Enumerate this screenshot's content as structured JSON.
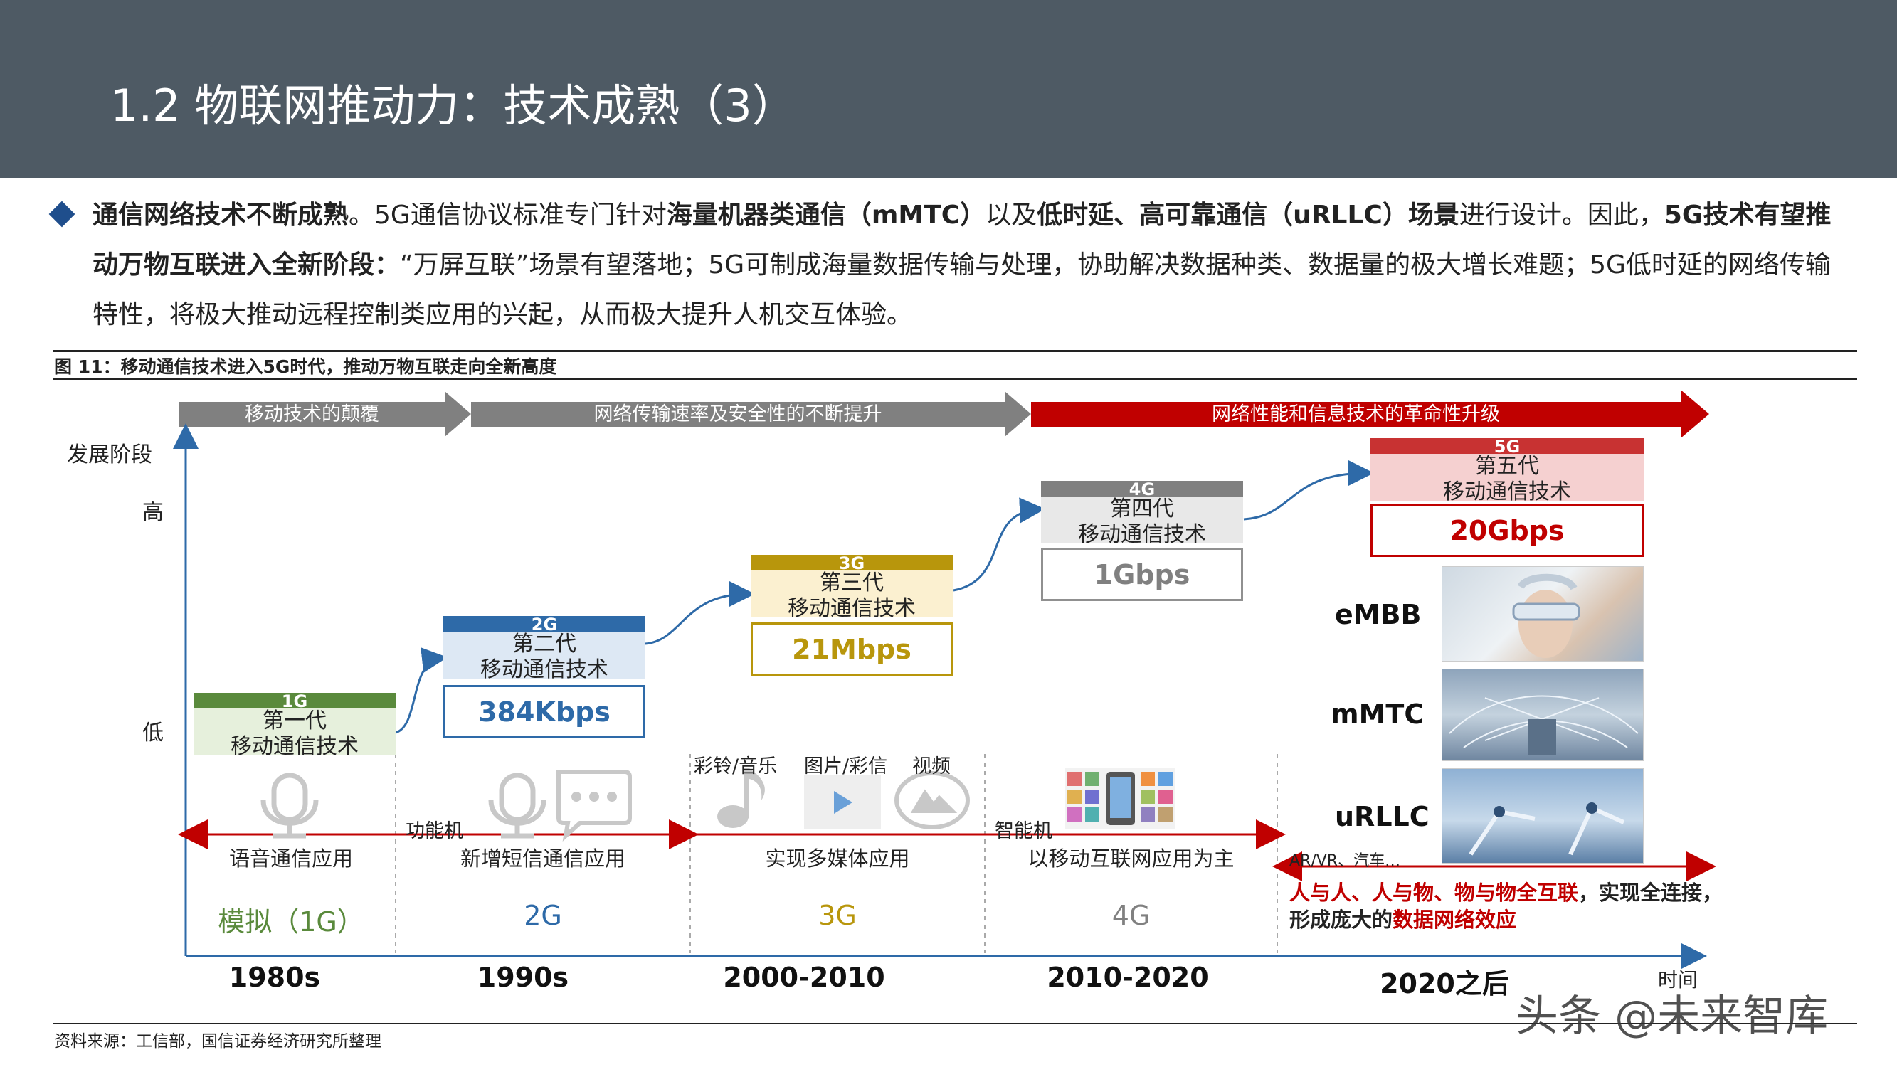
{
  "header": {
    "title": "1.2 物联网推动力：技术成熟（3）"
  },
  "intro": {
    "p1": "通信网络技术不断成熟",
    "p2": "。5G通信协议标准专门针对",
    "p3": "海量机器类通信（mMTC）",
    "p4": "以及",
    "p5": "低时延、高可靠通信（uRLLC）场景",
    "p6": "进行设计。因此，",
    "p7": "5G技术有望推动万物互联进入全新阶段：",
    "p8": "“万屏互联”场景有望落地；5G可制成海量数据传输与处理，协助解决数据种类、数据量的极大增长难题；5G低时延的网络传输特性，将极大推动远程控制类应用的兴起，从而极大提升人机交互体验。"
  },
  "figure": {
    "label": "图 11：移动通信技术进入5G时代，推动万物互联走向全新高度",
    "banners": [
      {
        "text": "移动技术的颠覆",
        "color": "#808080"
      },
      {
        "text": "网络传输速率及安全性的不断提升",
        "color": "#808080"
      },
      {
        "text": "网络性能和信息技术的革命性升级",
        "color": "#c00000"
      }
    ],
    "y_axis": {
      "title": "发展阶段",
      "high": "高",
      "low": "低"
    },
    "x_axis": {
      "title": "时间"
    },
    "generations": [
      {
        "tag": "1G",
        "line1": "第一代",
        "line2": "移动通信技术",
        "speed": "",
        "color": "#5a8a3c",
        "fill": "#e6f0dc"
      },
      {
        "tag": "2G",
        "line1": "第二代",
        "line2": "移动通信技术",
        "speed": "384Kbps",
        "color": "#2e6aa8",
        "fill": "#dde8f4"
      },
      {
        "tag": "3G",
        "line1": "第三代",
        "line2": "移动通信技术",
        "speed": "21Mbps",
        "color": "#b8960c",
        "fill": "#fbf0d0"
      },
      {
        "tag": "4G",
        "line1": "第四代",
        "line2": "移动通信技术",
        "speed": "1Gbps",
        "color": "#808080",
        "fill": "#e8e8e8"
      },
      {
        "tag": "5G",
        "line1": "第五代",
        "line2": "移动通信技术",
        "speed": "20Gbps",
        "color": "#c83232",
        "fill": "#f5d0d0"
      }
    ],
    "icon_labels": {
      "ringtone": "彩铃/音乐",
      "image": "图片/彩信",
      "video": "视频"
    },
    "phone_labels": {
      "feature": "功能机",
      "smart": "智能机",
      "arvr": "AR/VR、汽车…"
    },
    "apps": [
      "语音通信应用",
      "新增短信通信应用",
      "实现多媒体应用",
      "以移动互联网应用为主"
    ],
    "eras": [
      {
        "text": "模拟（1G）",
        "color": "#5a8a3c"
      },
      {
        "text": "2G",
        "color": "#2e6aa8"
      },
      {
        "text": "3G",
        "color": "#b8960c"
      },
      {
        "text": "4G",
        "color": "#808080"
      }
    ],
    "decades": [
      "1980s",
      "1990s",
      "2000-2010",
      "2010-2020",
      "2020之后"
    ],
    "scenarios": [
      "eMBB",
      "mMTC",
      "uRLLC"
    ],
    "note": {
      "r1": "人与人、人与物、物与物全互联",
      "t1": "，实现全连接，形成庞大的",
      "r2": "数据网络效应"
    }
  },
  "source": "资料来源：工信部，国信证券经济研究所整理",
  "watermark": "头条 @未来智库"
}
